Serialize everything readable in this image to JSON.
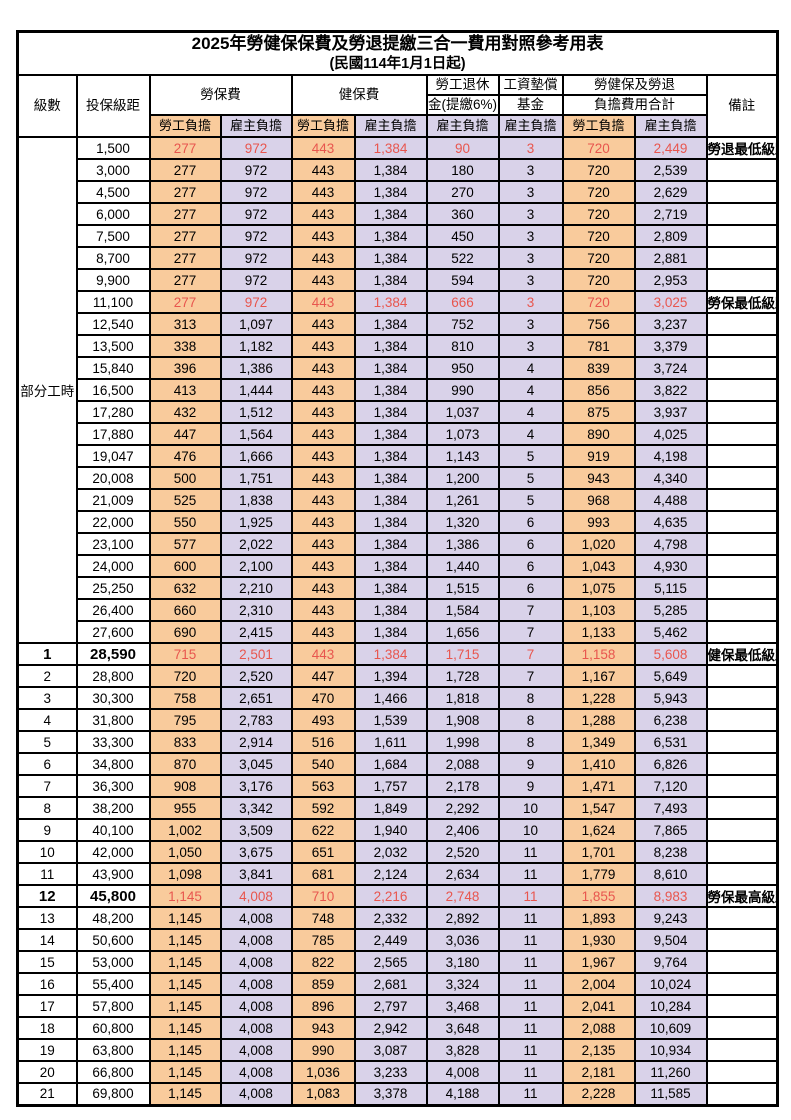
{
  "title": "2025年勞健保保費及勞退提繳三合一費用對照參考用表",
  "subtitle": "(民國114年1月1日起)",
  "header": {
    "level": "級數",
    "bracket": "投保級距",
    "labor_insurance": "勞保費",
    "health_insurance": "健保費",
    "pension_top": "勞工退休",
    "pension_bottom": "金(提繳6%)",
    "wage_fund_top": "工資墊償",
    "wage_fund_bottom": "基金",
    "total_top": "勞健保及勞退",
    "total_bottom": "負擔費用合計",
    "remark": "備註",
    "employee": "勞工負擔",
    "employer": "雇主負擔"
  },
  "part_time_label": "部分工時",
  "part_time_rowspan": 23,
  "employee_value_columns": [
    0,
    2,
    6
  ],
  "colors": {
    "employee_bg": "#F9CB9C",
    "employer_bg": "#D9D2E9",
    "highlight_value_text": "#E8564E",
    "remark_text": "#E23B36",
    "border": "#000000"
  },
  "rows": [
    {
      "lv": "",
      "br": "1,500",
      "v": [
        "277",
        "972",
        "443",
        "1,384",
        "90",
        "3",
        "720",
        "2,449"
      ],
      "rm": "勞退最低級距",
      "red": true,
      "bold": false
    },
    {
      "lv": "",
      "br": "3,000",
      "v": [
        "277",
        "972",
        "443",
        "1,384",
        "180",
        "3",
        "720",
        "2,539"
      ],
      "rm": "",
      "red": false,
      "bold": false
    },
    {
      "lv": "",
      "br": "4,500",
      "v": [
        "277",
        "972",
        "443",
        "1,384",
        "270",
        "3",
        "720",
        "2,629"
      ],
      "rm": "",
      "red": false,
      "bold": false
    },
    {
      "lv": "",
      "br": "6,000",
      "v": [
        "277",
        "972",
        "443",
        "1,384",
        "360",
        "3",
        "720",
        "2,719"
      ],
      "rm": "",
      "red": false,
      "bold": false
    },
    {
      "lv": "",
      "br": "7,500",
      "v": [
        "277",
        "972",
        "443",
        "1,384",
        "450",
        "3",
        "720",
        "2,809"
      ],
      "rm": "",
      "red": false,
      "bold": false
    },
    {
      "lv": "",
      "br": "8,700",
      "v": [
        "277",
        "972",
        "443",
        "1,384",
        "522",
        "3",
        "720",
        "2,881"
      ],
      "rm": "",
      "red": false,
      "bold": false
    },
    {
      "lv": "",
      "br": "9,900",
      "v": [
        "277",
        "972",
        "443",
        "1,384",
        "594",
        "3",
        "720",
        "2,953"
      ],
      "rm": "",
      "red": false,
      "bold": false
    },
    {
      "lv": "",
      "br": "11,100",
      "v": [
        "277",
        "972",
        "443",
        "1,384",
        "666",
        "3",
        "720",
        "3,025"
      ],
      "rm": "勞保最低級距",
      "red": true,
      "bold": false
    },
    {
      "lv": "",
      "br": "12,540",
      "v": [
        "313",
        "1,097",
        "443",
        "1,384",
        "752",
        "3",
        "756",
        "3,237"
      ],
      "rm": "",
      "red": false,
      "bold": false
    },
    {
      "lv": "",
      "br": "13,500",
      "v": [
        "338",
        "1,182",
        "443",
        "1,384",
        "810",
        "3",
        "781",
        "3,379"
      ],
      "rm": "",
      "red": false,
      "bold": false
    },
    {
      "lv": "",
      "br": "15,840",
      "v": [
        "396",
        "1,386",
        "443",
        "1,384",
        "950",
        "4",
        "839",
        "3,724"
      ],
      "rm": "",
      "red": false,
      "bold": false
    },
    {
      "lv": "",
      "br": "16,500",
      "v": [
        "413",
        "1,444",
        "443",
        "1,384",
        "990",
        "4",
        "856",
        "3,822"
      ],
      "rm": "",
      "red": false,
      "bold": false
    },
    {
      "lv": "",
      "br": "17,280",
      "v": [
        "432",
        "1,512",
        "443",
        "1,384",
        "1,037",
        "4",
        "875",
        "3,937"
      ],
      "rm": "",
      "red": false,
      "bold": false
    },
    {
      "lv": "",
      "br": "17,880",
      "v": [
        "447",
        "1,564",
        "443",
        "1,384",
        "1,073",
        "4",
        "890",
        "4,025"
      ],
      "rm": "",
      "red": false,
      "bold": false
    },
    {
      "lv": "",
      "br": "19,047",
      "v": [
        "476",
        "1,666",
        "443",
        "1,384",
        "1,143",
        "5",
        "919",
        "4,198"
      ],
      "rm": "",
      "red": false,
      "bold": false
    },
    {
      "lv": "",
      "br": "20,008",
      "v": [
        "500",
        "1,751",
        "443",
        "1,384",
        "1,200",
        "5",
        "943",
        "4,340"
      ],
      "rm": "",
      "red": false,
      "bold": false
    },
    {
      "lv": "",
      "br": "21,009",
      "v": [
        "525",
        "1,838",
        "443",
        "1,384",
        "1,261",
        "5",
        "968",
        "4,488"
      ],
      "rm": "",
      "red": false,
      "bold": false
    },
    {
      "lv": "",
      "br": "22,000",
      "v": [
        "550",
        "1,925",
        "443",
        "1,384",
        "1,320",
        "6",
        "993",
        "4,635"
      ],
      "rm": "",
      "red": false,
      "bold": false
    },
    {
      "lv": "",
      "br": "23,100",
      "v": [
        "577",
        "2,022",
        "443",
        "1,384",
        "1,386",
        "6",
        "1,020",
        "4,798"
      ],
      "rm": "",
      "red": false,
      "bold": false
    },
    {
      "lv": "",
      "br": "24,000",
      "v": [
        "600",
        "2,100",
        "443",
        "1,384",
        "1,440",
        "6",
        "1,043",
        "4,930"
      ],
      "rm": "",
      "red": false,
      "bold": false
    },
    {
      "lv": "",
      "br": "25,250",
      "v": [
        "632",
        "2,210",
        "443",
        "1,384",
        "1,515",
        "6",
        "1,075",
        "5,115"
      ],
      "rm": "",
      "red": false,
      "bold": false
    },
    {
      "lv": "",
      "br": "26,400",
      "v": [
        "660",
        "2,310",
        "443",
        "1,384",
        "1,584",
        "7",
        "1,103",
        "5,285"
      ],
      "rm": "",
      "red": false,
      "bold": false
    },
    {
      "lv": "",
      "br": "27,600",
      "v": [
        "690",
        "2,415",
        "443",
        "1,384",
        "1,656",
        "7",
        "1,133",
        "5,462"
      ],
      "rm": "",
      "red": false,
      "bold": false
    },
    {
      "lv": "1",
      "br": "28,590",
      "v": [
        "715",
        "2,501",
        "443",
        "1,384",
        "1,715",
        "7",
        "1,158",
        "5,608"
      ],
      "rm": "健保最低級距",
      "red": true,
      "bold": true
    },
    {
      "lv": "2",
      "br": "28,800",
      "v": [
        "720",
        "2,520",
        "447",
        "1,394",
        "1,728",
        "7",
        "1,167",
        "5,649"
      ],
      "rm": "",
      "red": false,
      "bold": false
    },
    {
      "lv": "3",
      "br": "30,300",
      "v": [
        "758",
        "2,651",
        "470",
        "1,466",
        "1,818",
        "8",
        "1,228",
        "5,943"
      ],
      "rm": "",
      "red": false,
      "bold": false
    },
    {
      "lv": "4",
      "br": "31,800",
      "v": [
        "795",
        "2,783",
        "493",
        "1,539",
        "1,908",
        "8",
        "1,288",
        "6,238"
      ],
      "rm": "",
      "red": false,
      "bold": false
    },
    {
      "lv": "5",
      "br": "33,300",
      "v": [
        "833",
        "2,914",
        "516",
        "1,611",
        "1,998",
        "8",
        "1,349",
        "6,531"
      ],
      "rm": "",
      "red": false,
      "bold": false
    },
    {
      "lv": "6",
      "br": "34,800",
      "v": [
        "870",
        "3,045",
        "540",
        "1,684",
        "2,088",
        "9",
        "1,410",
        "6,826"
      ],
      "rm": "",
      "red": false,
      "bold": false
    },
    {
      "lv": "7",
      "br": "36,300",
      "v": [
        "908",
        "3,176",
        "563",
        "1,757",
        "2,178",
        "9",
        "1,471",
        "7,120"
      ],
      "rm": "",
      "red": false,
      "bold": false
    },
    {
      "lv": "8",
      "br": "38,200",
      "v": [
        "955",
        "3,342",
        "592",
        "1,849",
        "2,292",
        "10",
        "1,547",
        "7,493"
      ],
      "rm": "",
      "red": false,
      "bold": false
    },
    {
      "lv": "9",
      "br": "40,100",
      "v": [
        "1,002",
        "3,509",
        "622",
        "1,940",
        "2,406",
        "10",
        "1,624",
        "7,865"
      ],
      "rm": "",
      "red": false,
      "bold": false
    },
    {
      "lv": "10",
      "br": "42,000",
      "v": [
        "1,050",
        "3,675",
        "651",
        "2,032",
        "2,520",
        "11",
        "1,701",
        "8,238"
      ],
      "rm": "",
      "red": false,
      "bold": false
    },
    {
      "lv": "11",
      "br": "43,900",
      "v": [
        "1,098",
        "3,841",
        "681",
        "2,124",
        "2,634",
        "11",
        "1,779",
        "8,610"
      ],
      "rm": "",
      "red": false,
      "bold": false
    },
    {
      "lv": "12",
      "br": "45,800",
      "v": [
        "1,145",
        "4,008",
        "710",
        "2,216",
        "2,748",
        "11",
        "1,855",
        "8,983"
      ],
      "rm": "勞保最高級距",
      "red": true,
      "bold": true
    },
    {
      "lv": "13",
      "br": "48,200",
      "v": [
        "1,145",
        "4,008",
        "748",
        "2,332",
        "2,892",
        "11",
        "1,893",
        "9,243"
      ],
      "rm": "",
      "red": false,
      "bold": false
    },
    {
      "lv": "14",
      "br": "50,600",
      "v": [
        "1,145",
        "4,008",
        "785",
        "2,449",
        "3,036",
        "11",
        "1,930",
        "9,504"
      ],
      "rm": "",
      "red": false,
      "bold": false
    },
    {
      "lv": "15",
      "br": "53,000",
      "v": [
        "1,145",
        "4,008",
        "822",
        "2,565",
        "3,180",
        "11",
        "1,967",
        "9,764"
      ],
      "rm": "",
      "red": false,
      "bold": false
    },
    {
      "lv": "16",
      "br": "55,400",
      "v": [
        "1,145",
        "4,008",
        "859",
        "2,681",
        "3,324",
        "11",
        "2,004",
        "10,024"
      ],
      "rm": "",
      "red": false,
      "bold": false
    },
    {
      "lv": "17",
      "br": "57,800",
      "v": [
        "1,145",
        "4,008",
        "896",
        "2,797",
        "3,468",
        "11",
        "2,041",
        "10,284"
      ],
      "rm": "",
      "red": false,
      "bold": false
    },
    {
      "lv": "18",
      "br": "60,800",
      "v": [
        "1,145",
        "4,008",
        "943",
        "2,942",
        "3,648",
        "11",
        "2,088",
        "10,609"
      ],
      "rm": "",
      "red": false,
      "bold": false
    },
    {
      "lv": "19",
      "br": "63,800",
      "v": [
        "1,145",
        "4,008",
        "990",
        "3,087",
        "3,828",
        "11",
        "2,135",
        "10,934"
      ],
      "rm": "",
      "red": false,
      "bold": false
    },
    {
      "lv": "20",
      "br": "66,800",
      "v": [
        "1,145",
        "4,008",
        "1,036",
        "3,233",
        "4,008",
        "11",
        "2,181",
        "11,260"
      ],
      "rm": "",
      "red": false,
      "bold": false
    },
    {
      "lv": "21",
      "br": "69,800",
      "v": [
        "1,145",
        "4,008",
        "1,083",
        "3,378",
        "4,188",
        "11",
        "2,228",
        "11,585"
      ],
      "rm": "",
      "red": false,
      "bold": false
    }
  ]
}
